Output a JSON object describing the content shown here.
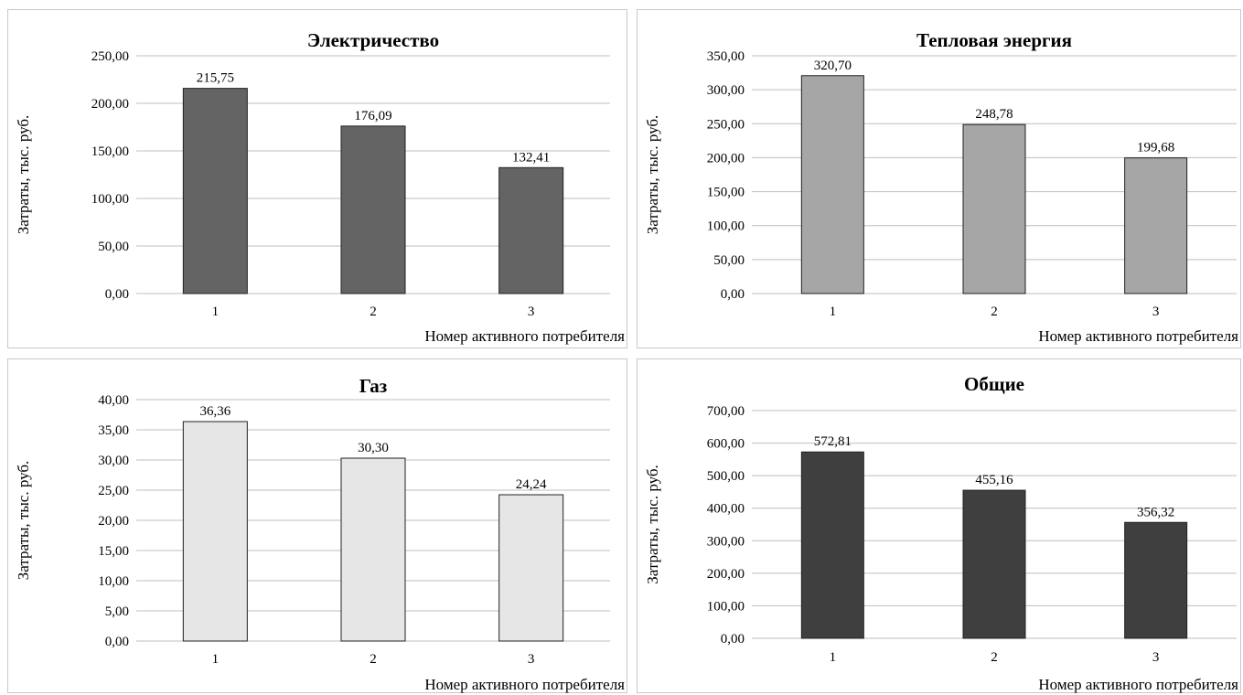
{
  "chart_data": [
    {
      "type": "bar",
      "title": "Электричество",
      "xlabel": "Номер активного потребителя",
      "ylabel": "Затраты, тыс. руб.",
      "categories": [
        "1",
        "2",
        "3"
      ],
      "values": [
        215.75,
        176.09,
        132.41
      ],
      "value_labels": [
        "215,75",
        "176,09",
        "132,41"
      ],
      "ylim": [
        0,
        250
      ],
      "yticks": [
        "0,00",
        "50,00",
        "100,00",
        "150,00",
        "200,00",
        "250,00"
      ],
      "bar_color": "#646464",
      "grid": true
    },
    {
      "type": "bar",
      "title": "Тепловая энергия",
      "xlabel": "Номер активного потребителя",
      "ylabel": "Затраты, тыс. руб.",
      "categories": [
        "1",
        "2",
        "3"
      ],
      "values": [
        320.7,
        248.78,
        199.68
      ],
      "value_labels": [
        "320,70",
        "248,78",
        "199,68"
      ],
      "ylim": [
        0,
        350
      ],
      "yticks": [
        "0,00",
        "50,00",
        "100,00",
        "150,00",
        "200,00",
        "250,00",
        "300,00",
        "350,00"
      ],
      "bar_color": "#a6a6a6",
      "grid": true
    },
    {
      "type": "bar",
      "title": "Газ",
      "xlabel": "Номер активного потребителя",
      "ylabel": "Затраты, тыс. руб.",
      "categories": [
        "1",
        "2",
        "3"
      ],
      "values": [
        36.36,
        30.3,
        24.24
      ],
      "value_labels": [
        "36,36",
        "30,30",
        "24,24"
      ],
      "ylim": [
        0,
        40
      ],
      "yticks": [
        "0,00",
        "5,00",
        "10,00",
        "15,00",
        "20,00",
        "25,00",
        "30,00",
        "35,00",
        "40,00"
      ],
      "bar_color": "#e6e6e6",
      "grid": true
    },
    {
      "type": "bar",
      "title": "Общие",
      "xlabel": "Номер активного потребителя",
      "ylabel": "Затраты, тыс. руб.",
      "categories": [
        "1",
        "2",
        "3"
      ],
      "values": [
        572.81,
        455.16,
        356.32
      ],
      "value_labels": [
        "572,81",
        "455,16",
        "356,32"
      ],
      "ylim": [
        0,
        700
      ],
      "yticks": [
        "0,00",
        "100,00",
        "200,00",
        "300,00",
        "400,00",
        "500,00",
        "600,00",
        "700,00"
      ],
      "bar_color": "#3f3f3f",
      "grid": true
    }
  ]
}
